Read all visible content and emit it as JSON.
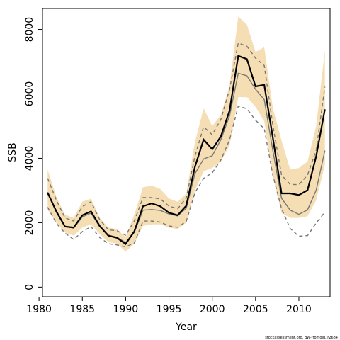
{
  "chart_data": {
    "type": "line",
    "title": "",
    "xlabel": "Year",
    "ylabel": "SSB",
    "xlim": [
      1980.4,
      2013.6
    ],
    "ylim": [
      -300,
      8650
    ],
    "x_ticks": [
      1980,
      1985,
      1990,
      1995,
      2000,
      2005,
      2010
    ],
    "y_ticks": [
      0,
      2000,
      4000,
      6000,
      8000
    ],
    "grid": false,
    "legend": "none",
    "x": [
      1981,
      1982,
      1983,
      1984,
      1985,
      1986,
      1987,
      1988,
      1989,
      1990,
      1991,
      1992,
      1993,
      1994,
      1995,
      1996,
      1997,
      1998,
      1999,
      2000,
      2001,
      2002,
      2003,
      2004,
      2005,
      2006,
      2007,
      2008,
      2009,
      2010,
      2011,
      2012,
      2013
    ],
    "series": [
      {
        "role": "band",
        "color": "#f5deb3",
        "lower": [
          2400,
          2000,
          1700,
          1600,
          1850,
          1950,
          1650,
          1400,
          1350,
          1100,
          1350,
          1900,
          1950,
          1950,
          1850,
          1800,
          2000,
          3000,
          3600,
          3700,
          3900,
          4400,
          5900,
          5900,
          5600,
          5150,
          3450,
          2300,
          2150,
          2150,
          2200,
          2700,
          3800
        ],
        "upper": [
          3650,
          2800,
          2250,
          2150,
          2650,
          2750,
          2150,
          1850,
          1800,
          1550,
          2250,
          3100,
          3150,
          3050,
          2750,
          2650,
          2900,
          4500,
          5550,
          5000,
          5350,
          6250,
          8400,
          8150,
          7300,
          7450,
          5550,
          4550,
          3650,
          3700,
          3900,
          5000,
          7350
        ]
      },
      {
        "role": "central",
        "color": "#000000",
        "values": [
          2930,
          2350,
          1880,
          1850,
          2230,
          2350,
          1900,
          1600,
          1530,
          1340,
          1730,
          2510,
          2600,
          2510,
          2310,
          2230,
          2530,
          3730,
          4580,
          4280,
          4680,
          5480,
          7180,
          7080,
          6230,
          6280,
          4630,
          2910,
          2910,
          2860,
          3010,
          4060,
          5520
        ]
      },
      {
        "role": "median",
        "color": "#777777",
        "values": [
          2950,
          2320,
          1880,
          1830,
          2180,
          2300,
          1880,
          1610,
          1550,
          1380,
          1700,
          2390,
          2410,
          2380,
          2270,
          2210,
          2450,
          3520,
          3980,
          4080,
          4580,
          5320,
          6640,
          6560,
          6140,
          5820,
          4230,
          2760,
          2390,
          2260,
          2400,
          3010,
          4240
        ]
      },
      {
        "role": "upper-dashed",
        "color": "#777777",
        "values": [
          3380,
          2700,
          2150,
          2050,
          2500,
          2650,
          2100,
          1780,
          1750,
          1610,
          2050,
          2780,
          2780,
          2740,
          2520,
          2430,
          2770,
          4060,
          4980,
          4730,
          5210,
          6140,
          7580,
          7480,
          7110,
          6880,
          5020,
          3480,
          3190,
          3180,
          3480,
          4250,
          6220
        ]
      },
      {
        "role": "lower-dashed",
        "color": "#777777",
        "values": [
          2480,
          1980,
          1680,
          1480,
          1720,
          1880,
          1540,
          1350,
          1310,
          1250,
          1370,
          2050,
          2050,
          2020,
          1900,
          1860,
          2040,
          2930,
          3380,
          3550,
          3950,
          4570,
          5620,
          5540,
          5180,
          4920,
          3470,
          2440,
          1820,
          1580,
          1600,
          1990,
          2330
        ]
      }
    ]
  },
  "footer": "stockassessment.org, BW-fromold, r2684"
}
